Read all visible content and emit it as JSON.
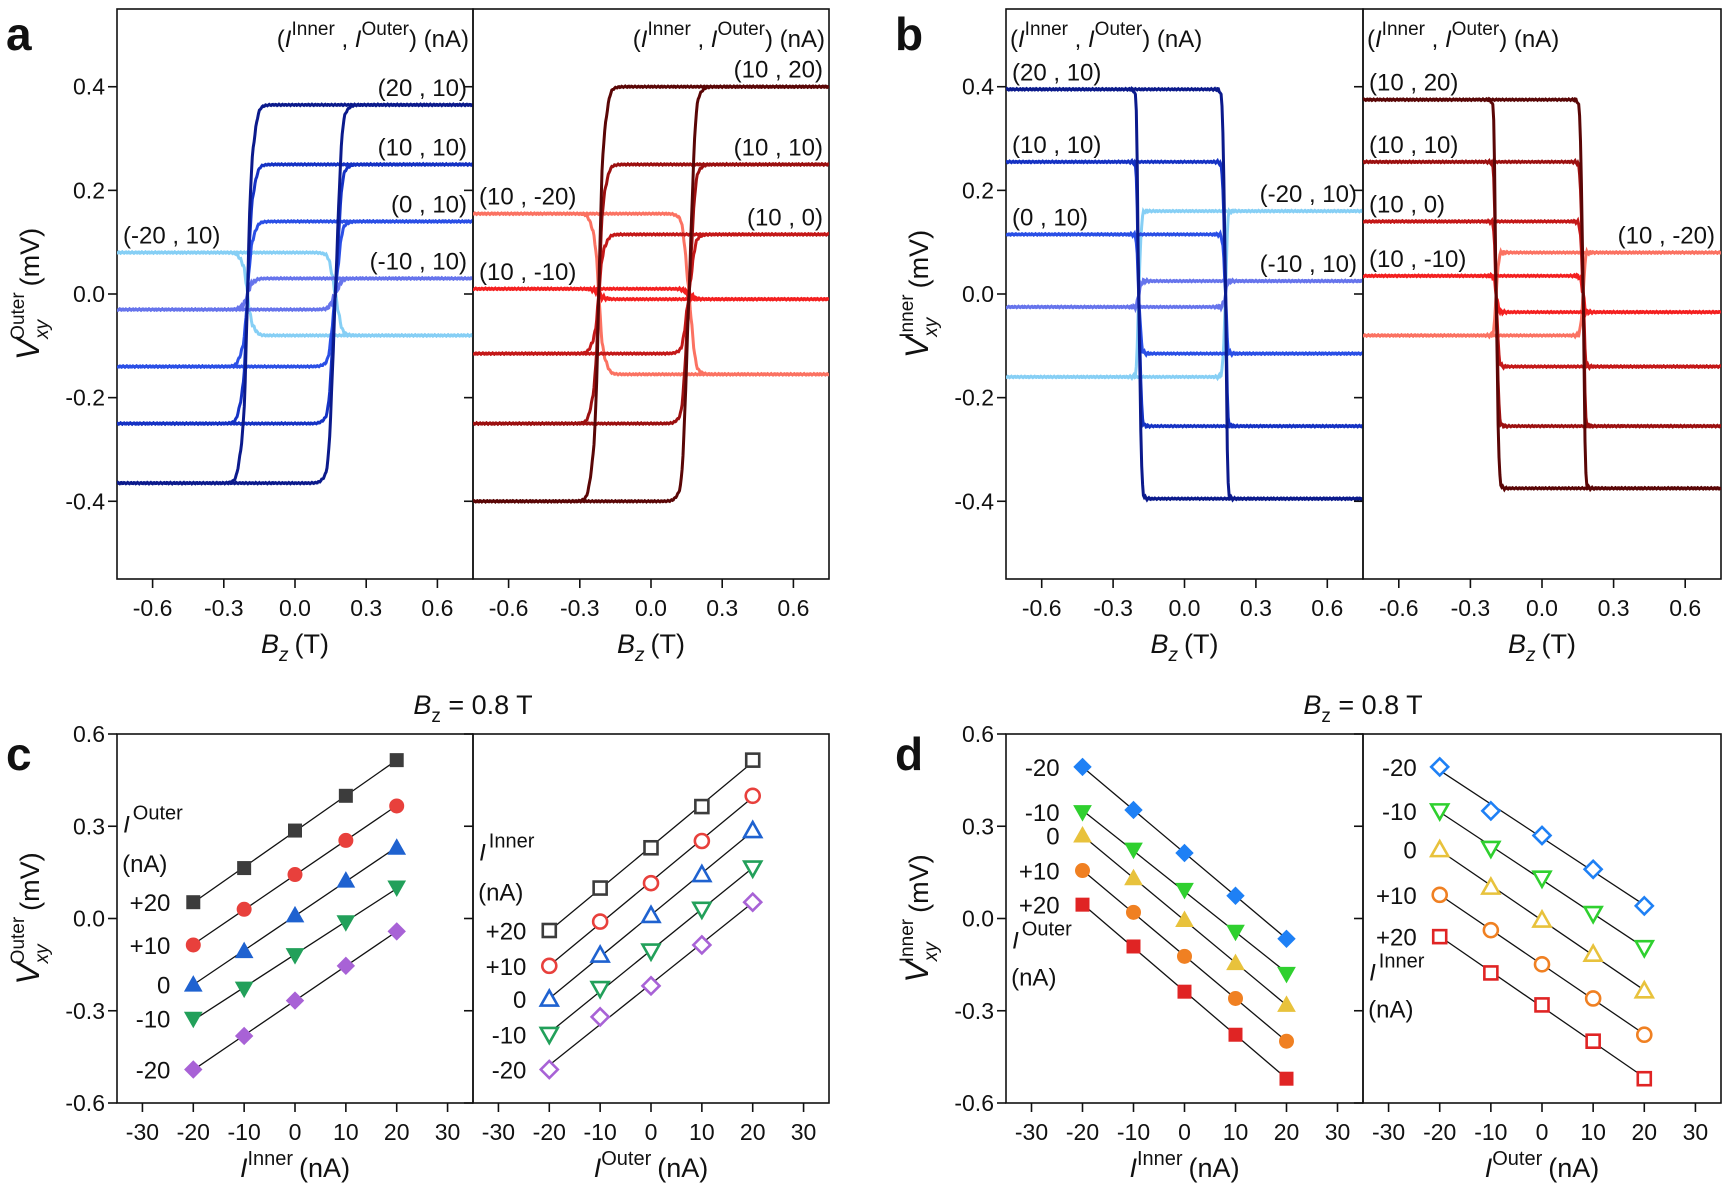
{
  "chart_data": [
    {
      "panel_label": "a",
      "type": "line",
      "ylabel": {
        "symbol": "V",
        "sub": "xy",
        "sup": "Outer",
        "unit": "(mV)"
      },
      "ylim": [
        -0.55,
        0.55
      ],
      "yticks": [
        0.4,
        0.2,
        0.0,
        -0.2,
        -0.4
      ],
      "ytick_labels": [
        "0.4",
        "0.2",
        "0.0",
        "-0.2",
        "-0.4"
      ],
      "subplots": [
        {
          "xlabel": {
            "symbol": "B",
            "sub": "z",
            "unit": "(T)"
          },
          "xlim": [
            -0.75,
            0.75
          ],
          "xticks": [
            -0.6,
            -0.3,
            0,
            0.3,
            0.6
          ],
          "xtick_labels": [
            "-0.6",
            "-0.3",
            "0.0",
            "0.3",
            "0.6"
          ],
          "legend_title": {
            "open": "(",
            "sym1": "I",
            "sup1": "Inner",
            "sep": " , ",
            "sym2": "I",
            "sup2": "Outer",
            "close": ") (nA)"
          },
          "switch_fields_T": [
            -0.2,
            0.17
          ],
          "series": [
            {
              "name": "(20 , 10)",
              "color": "#0b1a8c",
              "v_at_positive_B": 0.365,
              "v_at_negative_B": -0.365
            },
            {
              "name": "(10 , 10)",
              "color": "#1532c4",
              "v_at_positive_B": 0.25,
              "v_at_negative_B": -0.25
            },
            {
              "name": "(0 , 10)",
              "color": "#2a4fe6",
              "v_at_positive_B": 0.14,
              "v_at_negative_B": -0.14
            },
            {
              "name": "(-10 , 10)",
              "color": "#6674ec",
              "v_at_positive_B": 0.03,
              "v_at_negative_B": -0.03
            },
            {
              "name": "(-20 , 10)",
              "color": "#86cff5",
              "v_at_positive_B": -0.08,
              "v_at_negative_B": 0.08
            }
          ]
        },
        {
          "xlabel": {
            "symbol": "B",
            "sub": "z",
            "unit": "(T)"
          },
          "xlim": [
            -0.75,
            0.75
          ],
          "xticks": [
            -0.6,
            -0.3,
            0,
            0.3,
            0.6
          ],
          "xtick_labels": [
            "-0.6",
            "-0.3",
            "0.0",
            "0.3",
            "0.6"
          ],
          "legend_title": {
            "open": "(",
            "sym1": "I",
            "sup1": "Inner",
            "sep": " , ",
            "sym2": "I",
            "sup2": "Outer",
            "close": ") (nA)"
          },
          "switch_fields_T": [
            -0.22,
            0.16
          ],
          "series": [
            {
              "name": "(10 , 20)",
              "color": "#5a0606",
              "v_at_positive_B": 0.4,
              "v_at_negative_B": -0.4
            },
            {
              "name": "(10 , 10)",
              "color": "#9c1010",
              "v_at_positive_B": 0.25,
              "v_at_negative_B": -0.25
            },
            {
              "name": "(10 , 0)",
              "color": "#c41818",
              "v_at_positive_B": 0.115,
              "v_at_negative_B": -0.115
            },
            {
              "name": "(10 , -10)",
              "color": "#f42020",
              "v_at_positive_B": -0.01,
              "v_at_negative_B": 0.01
            },
            {
              "name": "(10 , -20)",
              "color": "#fb7262",
              "v_at_positive_B": -0.155,
              "v_at_negative_B": 0.155
            }
          ]
        }
      ]
    },
    {
      "panel_label": "b",
      "type": "line",
      "ylabel": {
        "symbol": "V",
        "sub": "xy",
        "sup": "Inner",
        "unit": "(mV)"
      },
      "ylim": [
        -0.55,
        0.55
      ],
      "yticks": [
        0.4,
        0.2,
        0.0,
        -0.2,
        -0.4
      ],
      "ytick_labels": [
        "0.4",
        "0.2",
        "0.0",
        "-0.2",
        "-0.4"
      ],
      "subplots": [
        {
          "xlabel": {
            "symbol": "B",
            "sub": "z",
            "unit": "(T)"
          },
          "xlim": [
            -0.75,
            0.75
          ],
          "xticks": [
            -0.6,
            -0.3,
            0,
            0.3,
            0.6
          ],
          "xtick_labels": [
            "-0.6",
            "-0.3",
            "0.0",
            "0.3",
            "0.6"
          ],
          "legend_title": {
            "open": "(",
            "sym1": "I",
            "sup1": "Inner",
            "sep": " , ",
            "sym2": "I",
            "sup2": "Outer",
            "close": ") (nA)"
          },
          "switch_fields_T": [
            -0.19,
            0.17
          ],
          "series": [
            {
              "name": "(20 , 10)",
              "color": "#0b1a8c",
              "v_at_positive_B": -0.395,
              "v_at_negative_B": 0.395
            },
            {
              "name": "(10 , 10)",
              "color": "#1532c4",
              "v_at_positive_B": -0.255,
              "v_at_negative_B": 0.255
            },
            {
              "name": "(0 , 10)",
              "color": "#2a4fe6",
              "v_at_positive_B": -0.115,
              "v_at_negative_B": 0.115
            },
            {
              "name": "(-10 , 10)",
              "color": "#6674ec",
              "v_at_positive_B": 0.025,
              "v_at_negative_B": -0.025
            },
            {
              "name": "(-20 , 10)",
              "color": "#86cff5",
              "v_at_positive_B": 0.16,
              "v_at_negative_B": -0.16
            }
          ]
        },
        {
          "xlabel": {
            "symbol": "B",
            "sub": "z",
            "unit": "(T)"
          },
          "xlim": [
            -0.75,
            0.75
          ],
          "xticks": [
            -0.6,
            -0.3,
            0,
            0.3,
            0.6
          ],
          "xtick_labels": [
            "-0.6",
            "-0.3",
            "0.0",
            "0.3",
            "0.6"
          ],
          "legend_title": {
            "open": "(",
            "sym1": "I",
            "sup1": "Inner",
            "sep": " , ",
            "sym2": "I",
            "sup2": "Outer",
            "close": ") (nA)"
          },
          "switch_fields_T": [
            -0.19,
            0.17
          ],
          "series": [
            {
              "name": "(10 , 20)",
              "color": "#5a0606",
              "v_at_positive_B": -0.375,
              "v_at_negative_B": 0.375
            },
            {
              "name": "(10 , 10)",
              "color": "#9c1010",
              "v_at_positive_B": -0.255,
              "v_at_negative_B": 0.255
            },
            {
              "name": "(10 , 0)",
              "color": "#c41818",
              "v_at_positive_B": -0.14,
              "v_at_negative_B": 0.14
            },
            {
              "name": "(10 , -10)",
              "color": "#f42020",
              "v_at_positive_B": -0.035,
              "v_at_negative_B": 0.035
            },
            {
              "name": "(10 , -20)",
              "color": "#fb7262",
              "v_at_positive_B": 0.08,
              "v_at_negative_B": -0.08
            }
          ]
        }
      ]
    },
    {
      "panel_label": "c",
      "type": "scatter",
      "title": {
        "symbol": "B",
        "sub": "z",
        "rest": " = 0.8 T"
      },
      "ylabel": {
        "symbol": "V",
        "sub": "xy",
        "sup": "Outer",
        "unit": "(mV)"
      },
      "ylim": [
        -0.6,
        0.6
      ],
      "yticks": [
        0.6,
        0.3,
        0.0,
        -0.3,
        -0.6
      ],
      "ytick_labels": [
        "0.6",
        "0.3",
        "0.0",
        "-0.3",
        "-0.6"
      ],
      "subplots": [
        {
          "xlabel": {
            "symbol": "I",
            "sup": "Inner",
            "unit": "(nA)"
          },
          "xlim": [
            -35,
            35
          ],
          "xticks": [
            -30,
            -20,
            -10,
            0,
            10,
            20,
            30
          ],
          "xtick_labels": [
            "-30",
            "-20",
            "-10",
            "0",
            "10",
            "20",
            "30"
          ],
          "legend_title": {
            "symbol": "I",
            "sup": "Outer",
            "unit": "(nA)"
          },
          "filled": true,
          "x": [
            -20,
            -10,
            0,
            10,
            20
          ],
          "series": [
            {
              "name": "+20",
              "marker": "square",
              "color": "#3c3c3c",
              "y": [
                0.053,
                0.164,
                0.286,
                0.399,
                0.515
              ]
            },
            {
              "name": "+10",
              "marker": "circle",
              "color": "#e8403c",
              "y": [
                -0.086,
                0.03,
                0.143,
                0.254,
                0.366
              ]
            },
            {
              "name": "0",
              "marker": "triangle-up",
              "color": "#1f62d0",
              "y": [
                -0.215,
                -0.106,
                0.01,
                0.123,
                0.23
              ]
            },
            {
              "name": "-10",
              "marker": "triangle-down",
              "color": "#22a05a",
              "y": [
                -0.326,
                -0.228,
                -0.119,
                -0.012,
                0.101
              ]
            },
            {
              "name": "-20",
              "marker": "diamond",
              "color": "#a862d6",
              "y": [
                -0.491,
                -0.382,
                -0.267,
                -0.154,
                -0.042
              ]
            }
          ]
        },
        {
          "xlabel": {
            "symbol": "I",
            "sup": "Outer",
            "unit": "(nA)"
          },
          "xlim": [
            -35,
            35
          ],
          "xticks": [
            -30,
            -20,
            -10,
            0,
            10,
            20,
            30
          ],
          "xtick_labels": [
            "-30",
            "-20",
            "-10",
            "0",
            "10",
            "20",
            "30"
          ],
          "legend_title": {
            "symbol": "I",
            "sup": "Inner",
            "unit": "(nA)"
          },
          "filled": false,
          "x": [
            -20,
            -10,
            0,
            10,
            20
          ],
          "series": [
            {
              "name": "+20",
              "marker": "square",
              "color": "#3c3c3c",
              "y": [
                -0.039,
                0.099,
                0.23,
                0.364,
                0.515
              ]
            },
            {
              "name": "+10",
              "marker": "circle",
              "color": "#e8403c",
              "y": [
                -0.154,
                -0.01,
                0.115,
                0.252,
                0.399
              ]
            },
            {
              "name": "0",
              "marker": "triangle-up",
              "color": "#1f62d0",
              "y": [
                -0.262,
                -0.119,
                0.01,
                0.143,
                0.286
              ]
            },
            {
              "name": "-10",
              "marker": "triangle-down",
              "color": "#22a05a",
              "y": [
                -0.377,
                -0.228,
                -0.106,
                0.03,
                0.164
              ]
            },
            {
              "name": "-20",
              "marker": "diamond",
              "color": "#a862d6",
              "y": [
                -0.491,
                -0.32,
                -0.219,
                -0.086,
                0.053
              ]
            }
          ]
        }
      ]
    },
    {
      "panel_label": "d",
      "type": "scatter",
      "title": {
        "symbol": "B",
        "sub": "z",
        "rest": " = 0.8 T"
      },
      "ylabel": {
        "symbol": "V",
        "sub": "xy",
        "sup": "Inner",
        "unit": "(mV)"
      },
      "ylim": [
        -0.6,
        0.6
      ],
      "yticks": [
        0.6,
        0.3,
        0.0,
        -0.3,
        -0.6
      ],
      "ytick_labels": [
        "0.6",
        "0.3",
        "0.0",
        "-0.3",
        "-0.6"
      ],
      "subplots": [
        {
          "xlabel": {
            "symbol": "I",
            "sup": "Inner",
            "unit": "(nA)"
          },
          "xlim": [
            -35,
            35
          ],
          "xticks": [
            -30,
            -20,
            -10,
            0,
            10,
            20,
            30
          ],
          "xtick_labels": [
            "-30",
            "-20",
            "-10",
            "0",
            "10",
            "20",
            "30"
          ],
          "legend_title": {
            "symbol": "I",
            "sup": "Outer",
            "unit": "(nA)"
          },
          "filled": true,
          "x": [
            -20,
            -10,
            0,
            10,
            20
          ],
          "series": [
            {
              "name": "-20",
              "marker": "diamond",
              "color": "#1e80f5",
              "y": [
                0.493,
                0.353,
                0.213,
                0.074,
                -0.066
              ]
            },
            {
              "name": "-10",
              "marker": "triangle-down",
              "color": "#2fd02f",
              "y": [
                0.346,
                0.224,
                0.093,
                -0.043,
                -0.18
              ]
            },
            {
              "name": "0",
              "marker": "triangle-up",
              "color": "#e8c23c",
              "y": [
                0.27,
                0.131,
                -0.005,
                -0.145,
                -0.281
              ]
            },
            {
              "name": "+10",
              "marker": "circle",
              "color": "#f08022",
              "y": [
                0.156,
                0.02,
                -0.123,
                -0.26,
                -0.399
              ]
            },
            {
              "name": "+20",
              "marker": "square",
              "color": "#e02424",
              "y": [
                0.045,
                -0.091,
                -0.238,
                -0.378,
                -0.521
              ]
            }
          ]
        },
        {
          "xlabel": {
            "symbol": "I",
            "sup": "Outer",
            "unit": "(nA)"
          },
          "xlim": [
            -35,
            35
          ],
          "xticks": [
            -30,
            -20,
            -10,
            0,
            10,
            20,
            30
          ],
          "xtick_labels": [
            "-30",
            "-20",
            "-10",
            "0",
            "10",
            "20",
            "30"
          ],
          "legend_title": {
            "symbol": "I",
            "sup": "Inner",
            "unit": "(nA)"
          },
          "filled": false,
          "x": [
            -20,
            -10,
            0,
            10,
            20
          ],
          "series": [
            {
              "name": "-20",
              "marker": "diamond",
              "color": "#1e80f5",
              "y": [
                0.493,
                0.35,
                0.27,
                0.16,
                0.041
              ]
            },
            {
              "name": "-10",
              "marker": "triangle-down",
              "color": "#2fd02f",
              "y": [
                0.35,
                0.228,
                0.131,
                0.016,
                -0.095
              ]
            },
            {
              "name": "0",
              "marker": "triangle-up",
              "color": "#e8c23c",
              "y": [
                0.224,
                0.102,
                -0.005,
                -0.116,
                -0.235
              ]
            },
            {
              "name": "+10",
              "marker": "circle",
              "color": "#f08022",
              "y": [
                0.077,
                -0.038,
                -0.149,
                -0.26,
                -0.378
              ]
            },
            {
              "name": "+20",
              "marker": "square",
              "color": "#e02424",
              "y": [
                -0.059,
                -0.177,
                -0.281,
                -0.399,
                -0.521
              ]
            }
          ]
        }
      ]
    }
  ]
}
